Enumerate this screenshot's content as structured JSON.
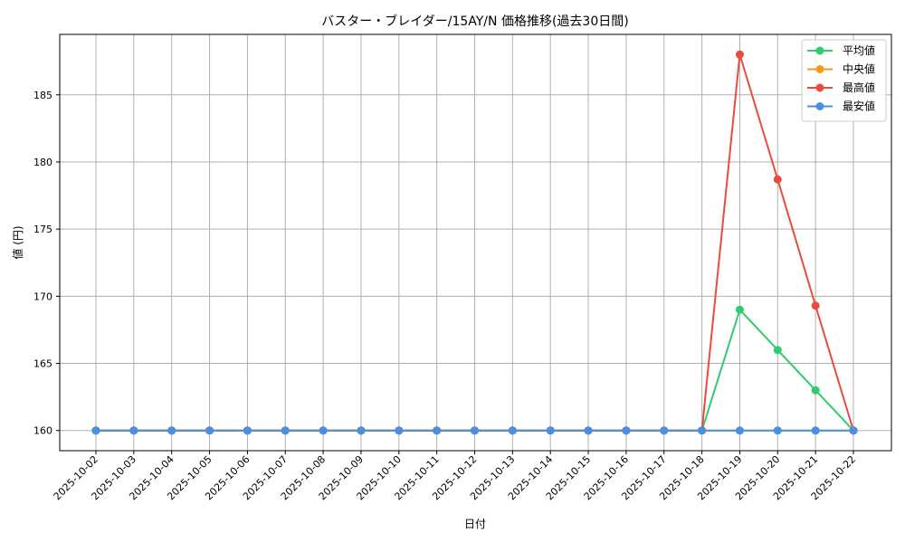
{
  "chart_data": {
    "type": "line",
    "title": "バスター・ブレイダー/15AY/N 価格推移(過去30日間)",
    "xlabel": "日付",
    "ylabel": "値 (円)",
    "ylim": [
      158.5,
      189.5
    ],
    "yticks": [
      160,
      165,
      170,
      175,
      180,
      185
    ],
    "grid": true,
    "legend_position": "top-right",
    "categories": [
      "2025-10-02",
      "2025-10-03",
      "2025-10-04",
      "2025-10-05",
      "2025-10-06",
      "2025-10-07",
      "2025-10-08",
      "2025-10-09",
      "2025-10-10",
      "2025-10-11",
      "2025-10-12",
      "2025-10-13",
      "2025-10-14",
      "2025-10-15",
      "2025-10-16",
      "2025-10-17",
      "2025-10-18",
      "2025-10-19",
      "2025-10-20",
      "2025-10-21",
      "2025-10-22"
    ],
    "series": [
      {
        "name": "平均値",
        "color": "#2ecc71",
        "values": [
          160,
          160,
          160,
          160,
          160,
          160,
          160,
          160,
          160,
          160,
          160,
          160,
          160,
          160,
          160,
          160,
          160,
          169,
          166,
          163,
          160
        ]
      },
      {
        "name": "中央値",
        "color": "#f39c12",
        "values": [
          160,
          160,
          160,
          160,
          160,
          160,
          160,
          160,
          160,
          160,
          160,
          160,
          160,
          160,
          160,
          160,
          160,
          160,
          160,
          160,
          160
        ]
      },
      {
        "name": "最高値",
        "color": "#e74c3c",
        "values": [
          160,
          160,
          160,
          160,
          160,
          160,
          160,
          160,
          160,
          160,
          160,
          160,
          160,
          160,
          160,
          160,
          160,
          188,
          178.7,
          169.3,
          160
        ]
      },
      {
        "name": "最安値",
        "color": "#4a90e2",
        "values": [
          160,
          160,
          160,
          160,
          160,
          160,
          160,
          160,
          160,
          160,
          160,
          160,
          160,
          160,
          160,
          160,
          160,
          160,
          160,
          160,
          160
        ]
      }
    ]
  }
}
